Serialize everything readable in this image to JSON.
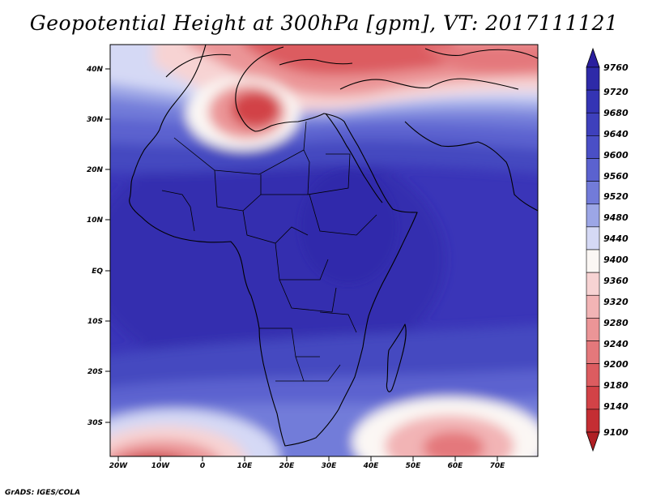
{
  "title": "Geopotential Height at 300hPa [gpm], VT: 2017111121",
  "credit": "GrADS: IGES/COLA",
  "lon_ticks": [
    "20W",
    "10W",
    "0",
    "10E",
    "20E",
    "30E",
    "40E",
    "50E",
    "60E",
    "70E"
  ],
  "lat_ticks": [
    "40N",
    "30N",
    "20N",
    "10N",
    "EQ",
    "10S",
    "20S",
    "30S"
  ],
  "colorbar": {
    "labels": [
      "9760",
      "9720",
      "9680",
      "9640",
      "9600",
      "9560",
      "9520",
      "9480",
      "9440",
      "9400",
      "9360",
      "9320",
      "9280",
      "9240",
      "9200",
      "9180",
      "9140",
      "9100"
    ],
    "colors": [
      "#2a1f9e",
      "#2e2aa8",
      "#3434b4",
      "#3e40bc",
      "#4a4fc6",
      "#5b62cf",
      "#727bd9",
      "#9ca6e6",
      "#d5d9f5",
      "#fbf7f4",
      "#f7d3d3",
      "#f2b4b5",
      "#eb9597",
      "#e4787b",
      "#dc5c60",
      "#d24247",
      "#c42e33",
      "#b01f24"
    ]
  },
  "colors": {
    "deep_blue": "#3a35b8",
    "mid_blue": "#4a4fc6",
    "light_blue": "#d5d9f5",
    "white_band": "#fbf7f4",
    "red_high": "#c42e33"
  }
}
